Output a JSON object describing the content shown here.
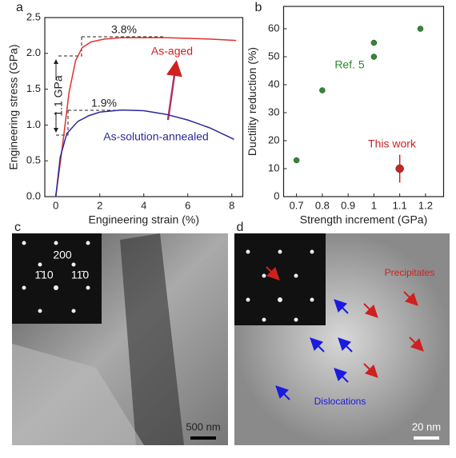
{
  "chart_data": [
    {
      "type": "line",
      "label": "a",
      "xlabel": "Engineering strain (%)",
      "ylabel": "Engineering stress (GPa)",
      "xlim": [
        -0.5,
        8.5
      ],
      "xticks": [
        0,
        2,
        4,
        6,
        8
      ],
      "ylim": [
        0,
        2.5
      ],
      "yticks": [
        {
          "value": 0,
          "label": "0.0"
        },
        {
          "value": 0.5,
          "label": "0.5"
        },
        {
          "value": 1,
          "label": "1.0"
        },
        {
          "value": 1.5,
          "label": "1.5"
        },
        {
          "value": 2,
          "label": "2.0"
        },
        {
          "value": 2.5,
          "label": "2.5"
        }
      ],
      "series": [
        {
          "name": "As-aged",
          "color": "#e03030",
          "x": [
            0,
            0.3,
            0.6,
            0.9,
            1.2,
            1.6,
            2.2,
            3,
            4,
            5,
            6,
            7,
            8.2
          ],
          "values": [
            0,
            0.7,
            1.45,
            1.9,
            2.08,
            2.16,
            2.2,
            2.22,
            2.22,
            2.22,
            2.21,
            2.2,
            2.18
          ]
        },
        {
          "name": "As-solution-annealed",
          "color": "#2a2a9a",
          "x": [
            0,
            0.2,
            0.5,
            1,
            1.5,
            2,
            3,
            4,
            5,
            6,
            7,
            8.1
          ],
          "values": [
            0,
            0.55,
            0.88,
            1.05,
            1.13,
            1.18,
            1.21,
            1.2,
            1.15,
            1.07,
            0.96,
            0.8
          ]
        }
      ],
      "annotations": [
        "3.8%",
        "1.9%",
        "1.1 GPa"
      ]
    },
    {
      "type": "scatter",
      "label": "b",
      "xlabel": "Strength increment (GPa)",
      "ylabel": "Ductility reduction (%)",
      "xlim": [
        0.65,
        1.27
      ],
      "xticks": [
        0.7,
        0.8,
        0.9,
        1.0,
        1.1,
        1.2
      ],
      "ylim": [
        0,
        68
      ],
      "yticks": [
        0,
        10,
        20,
        30,
        40,
        50,
        60
      ],
      "series": [
        {
          "name": "Ref. 5",
          "color": "#2e8b2e",
          "x": [
            0.7,
            0.8,
            1.0,
            1.0,
            1.18
          ],
          "values": [
            13,
            38,
            50,
            55,
            60
          ]
        },
        {
          "name": "This work",
          "color": "#cc2222",
          "x": [
            1.1
          ],
          "values": [
            10
          ],
          "errors": [
            5
          ]
        }
      ]
    }
  ],
  "panels": {
    "c": {
      "label": "c",
      "diffraction": [
        "200",
        "1̄10",
        "11̄0"
      ],
      "scale": "500 nm"
    },
    "d": {
      "label": "d",
      "annotations": [
        "Precipitates",
        "Dislocations"
      ],
      "scale": "20 nm"
    }
  }
}
